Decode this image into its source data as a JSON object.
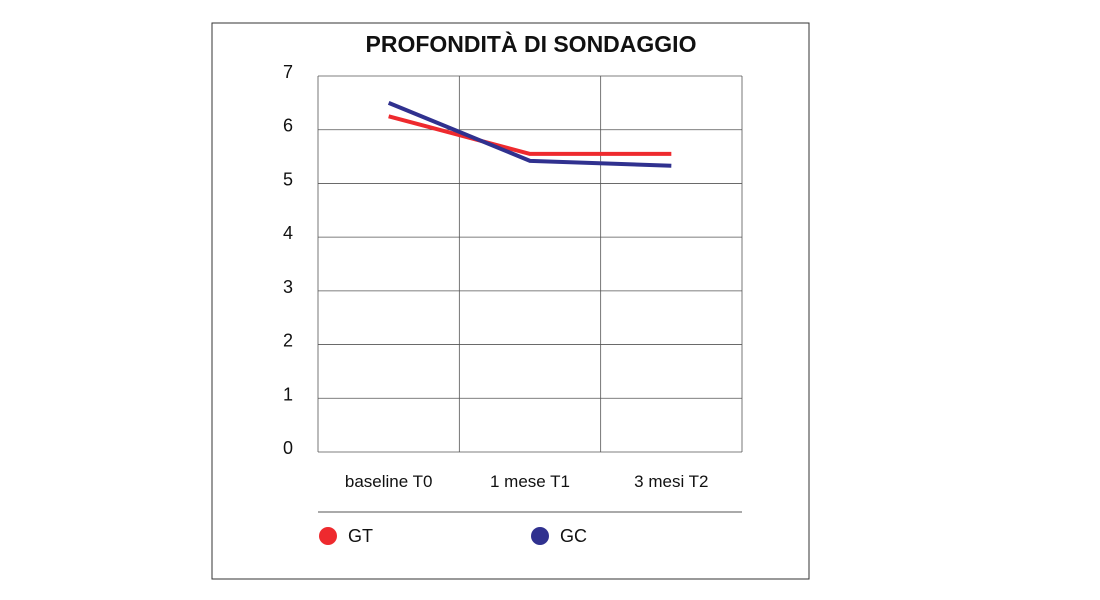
{
  "chart_data": {
    "type": "line",
    "title": "PROFONDITÀ DI SONDAGGIO",
    "categories": [
      "baseline T0",
      "1 mese T1",
      "3 mesi T2"
    ],
    "y_ticks": [
      "0",
      "1",
      "2",
      "3",
      "4",
      "5",
      "6",
      "7"
    ],
    "ylim": [
      0,
      7
    ],
    "grid": true,
    "legend_position": "bottom",
    "series": [
      {
        "name": "GT",
        "color": "#ee2a2e",
        "values": [
          6.25,
          5.55,
          5.55
        ]
      },
      {
        "name": "GC",
        "color": "#30318f",
        "values": [
          6.5,
          5.42,
          5.33
        ]
      }
    ]
  }
}
